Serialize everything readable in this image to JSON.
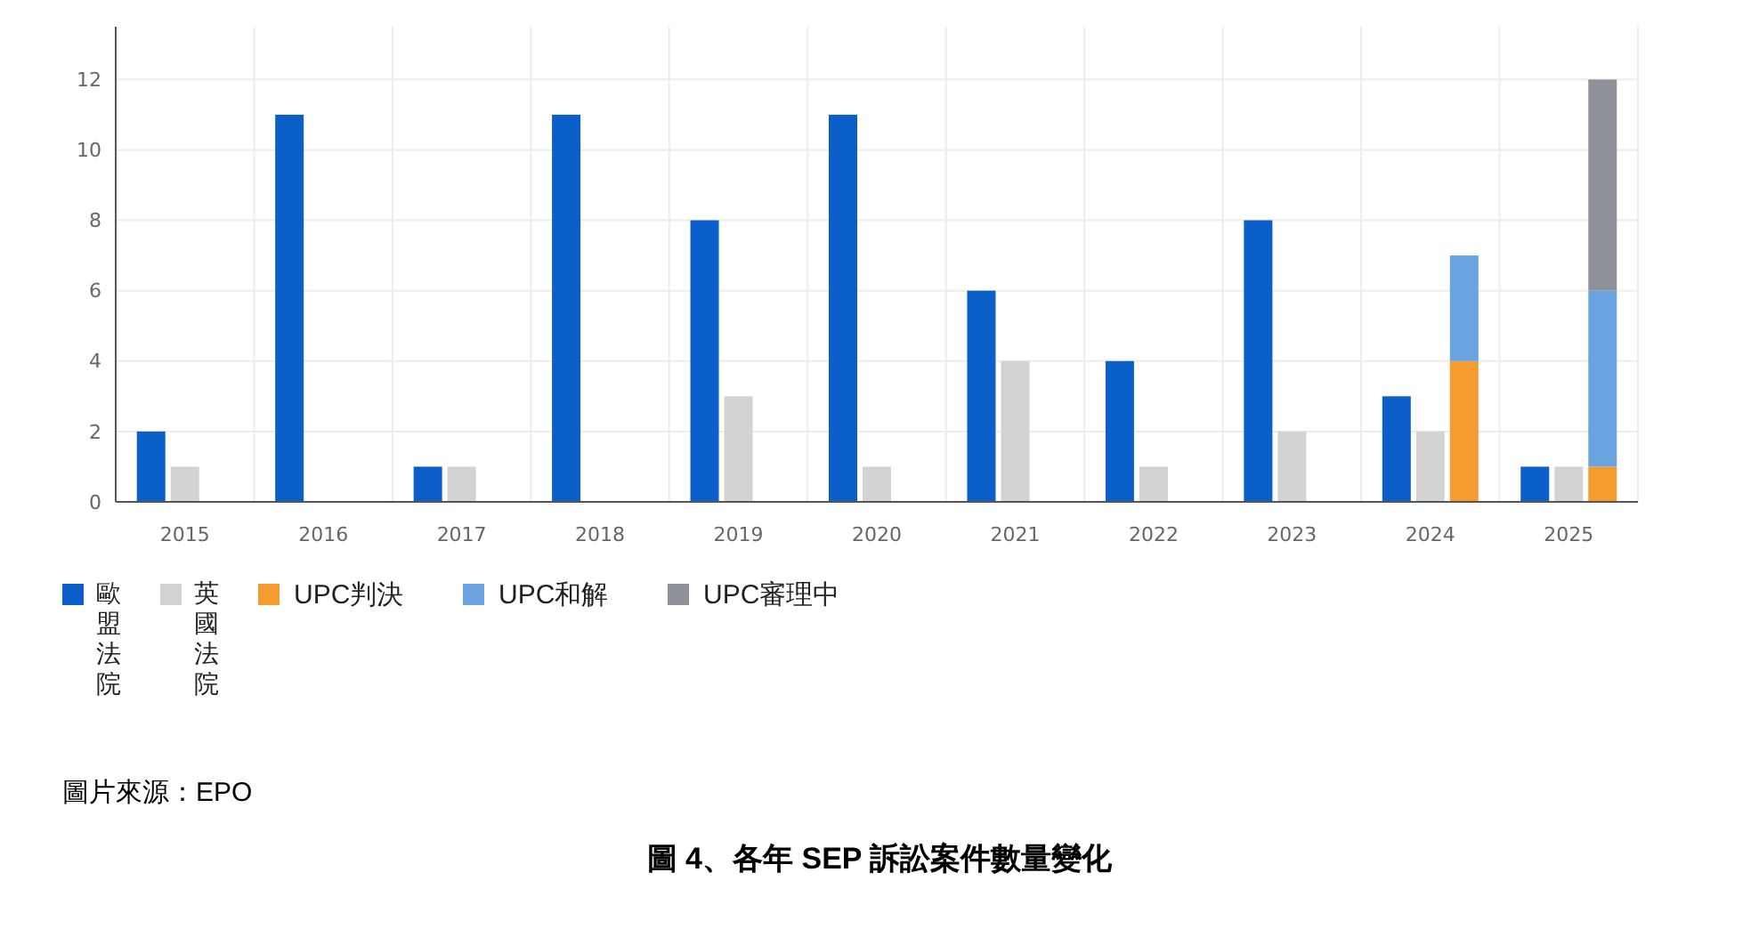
{
  "chart_data": {
    "type": "bar",
    "title": "圖 4、各年 SEP 訴訟案件數量變化",
    "annotations": [
      "圖片來源：EPO"
    ],
    "categories": [
      "2015",
      "2016",
      "2017",
      "2018",
      "2019",
      "2020",
      "2021",
      "2022",
      "2023",
      "2024",
      "2025"
    ],
    "series": [
      {
        "name": "歐盟法院",
        "color": "#0a5fc9",
        "values": [
          2,
          11,
          1,
          11,
          8,
          11,
          6,
          4,
          8,
          3,
          1
        ]
      },
      {
        "name": "英國法院",
        "color": "#d3d3d3",
        "values": [
          1,
          0,
          1,
          0,
          3,
          1,
          4,
          1,
          2,
          2,
          1
        ]
      },
      {
        "name": "UPC判決",
        "color": "#f59b2f",
        "values": [
          null,
          null,
          null,
          null,
          null,
          null,
          null,
          null,
          null,
          4,
          1
        ]
      },
      {
        "name": "UPC和解",
        "color": "#6aa3e0",
        "base": [
          null,
          null,
          null,
          null,
          null,
          null,
          null,
          null,
          null,
          4,
          1
        ],
        "values": [
          null,
          null,
          null,
          null,
          null,
          null,
          null,
          null,
          null,
          3,
          5
        ]
      },
      {
        "name": "UPC審理中",
        "color": "#8e9298",
        "base": [
          null,
          null,
          null,
          null,
          null,
          null,
          null,
          null,
          null,
          null,
          6
        ],
        "values": [
          null,
          null,
          null,
          null,
          null,
          null,
          null,
          null,
          null,
          null,
          6
        ]
      }
    ],
    "ylim": [
      0,
      13.5
    ],
    "yticks": [
      0,
      2,
      4,
      6,
      8,
      10,
      12
    ],
    "grid": true,
    "legend": "bottom"
  }
}
